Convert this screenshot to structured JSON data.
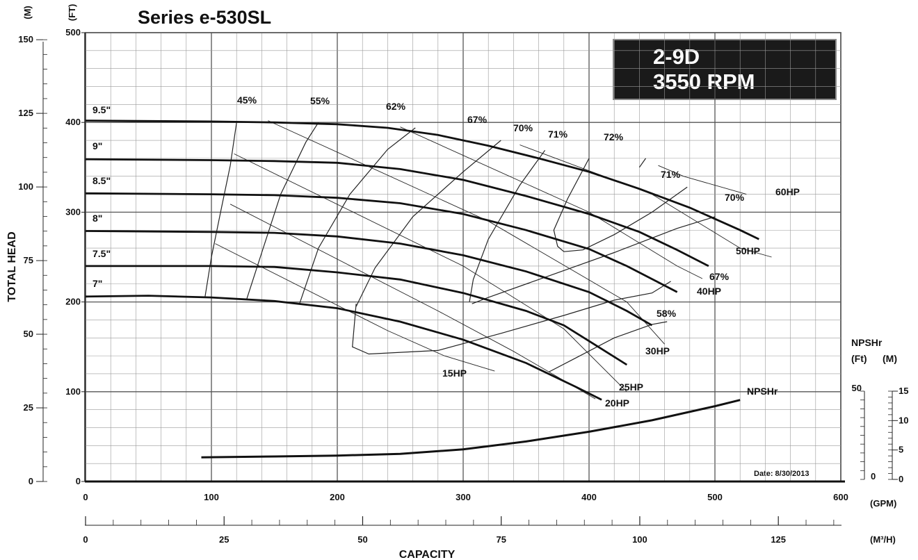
{
  "title": "Series e-530SL",
  "badge": {
    "line1": "2-9D",
    "line2": "3550 RPM"
  },
  "date_label": "Date: 8/30/2013",
  "chart_data": {
    "type": "line",
    "xlabel": "CAPACITY",
    "ylabel": "TOTAL HEAD",
    "x_unit": "(GPM)",
    "x2_unit": "(M³/H)",
    "y_left_unit": "(M)",
    "y_left2_unit": "(FT)",
    "xlim": [
      0,
      600
    ],
    "ylim_ft": [
      0,
      500
    ],
    "x_ticks_gpm": [
      "0",
      "100",
      "200",
      "300",
      "400",
      "500",
      "600"
    ],
    "x_ticks_m3h": [
      "0",
      "25",
      "50",
      "75",
      "100",
      "125"
    ],
    "y_ticks_ft": [
      "0",
      "100",
      "200",
      "300",
      "400",
      "500"
    ],
    "y_ticks_m": [
      "0",
      "25",
      "50",
      "75",
      "100",
      "125",
      "150"
    ],
    "npsh": {
      "header": [
        "NPSHr",
        "(Ft)",
        "(M)"
      ],
      "ft_ticks": [
        "0",
        "50"
      ],
      "m_ticks": [
        "0",
        "5",
        "10",
        "15"
      ],
      "label": "NPSHr",
      "points": [
        [
          92,
          12.5
        ],
        [
          150,
          13
        ],
        [
          200,
          13.5
        ],
        [
          250,
          14.5
        ],
        [
          300,
          17
        ],
        [
          350,
          21.5
        ],
        [
          400,
          27
        ],
        [
          450,
          33.5
        ],
        [
          500,
          41.5
        ],
        [
          520,
          45
        ]
      ]
    },
    "impellers": [
      {
        "name": "9.5\"",
        "points": [
          [
            0,
            402
          ],
          [
            100,
            401
          ],
          [
            150,
            400
          ],
          [
            200,
            398
          ],
          [
            240,
            394
          ],
          [
            280,
            386
          ],
          [
            320,
            374
          ],
          [
            360,
            360
          ],
          [
            400,
            345
          ],
          [
            440,
            326
          ],
          [
            480,
            305
          ],
          [
            520,
            280
          ],
          [
            535,
            270
          ]
        ]
      },
      {
        "name": "9\"",
        "points": [
          [
            0,
            359
          ],
          [
            100,
            358
          ],
          [
            150,
            357
          ],
          [
            200,
            355
          ],
          [
            250,
            348
          ],
          [
            300,
            336
          ],
          [
            350,
            318
          ],
          [
            400,
            298
          ],
          [
            440,
            278
          ],
          [
            470,
            258
          ],
          [
            495,
            240
          ]
        ]
      },
      {
        "name": "8.5\"",
        "points": [
          [
            0,
            321
          ],
          [
            100,
            320
          ],
          [
            150,
            319
          ],
          [
            200,
            316
          ],
          [
            250,
            310
          ],
          [
            300,
            298
          ],
          [
            350,
            280
          ],
          [
            400,
            259
          ],
          [
            430,
            240
          ],
          [
            455,
            222
          ],
          [
            470,
            211
          ]
        ]
      },
      {
        "name": "8\"",
        "points": [
          [
            0,
            279
          ],
          [
            100,
            278
          ],
          [
            150,
            277
          ],
          [
            200,
            273
          ],
          [
            250,
            265
          ],
          [
            300,
            252
          ],
          [
            350,
            234
          ],
          [
            400,
            211
          ],
          [
            430,
            190
          ],
          [
            450,
            174
          ]
        ]
      },
      {
        "name": "7.5\"",
        "points": [
          [
            0,
            240
          ],
          [
            100,
            240
          ],
          [
            150,
            239
          ],
          [
            200,
            233
          ],
          [
            250,
            225
          ],
          [
            300,
            210
          ],
          [
            350,
            190
          ],
          [
            380,
            174
          ],
          [
            405,
            152
          ],
          [
            430,
            130
          ]
        ]
      },
      {
        "name": "7\"",
        "points": [
          [
            0,
            206
          ],
          [
            50,
            207
          ],
          [
            100,
            205
          ],
          [
            150,
            201
          ],
          [
            200,
            193
          ],
          [
            250,
            178
          ],
          [
            300,
            158
          ],
          [
            350,
            132
          ],
          [
            390,
            105
          ],
          [
            410,
            91
          ]
        ]
      }
    ],
    "efficiency_labels": [
      "45%",
      "55%",
      "62%",
      "67%",
      "70%",
      "71%",
      "72%",
      "71%",
      "70%",
      "67%",
      "58%"
    ],
    "efficiency_curves": [
      {
        "name": "45%",
        "points": [
          [
            95,
            206
          ],
          [
            100,
            250
          ],
          [
            108,
            305
          ],
          [
            115,
            352
          ],
          [
            120,
            400
          ]
        ]
      },
      {
        "name": "55%",
        "points": [
          [
            128,
            203
          ],
          [
            140,
            255
          ],
          [
            155,
            320
          ],
          [
            175,
            378
          ],
          [
            185,
            400
          ]
        ]
      },
      {
        "name": "62%",
        "points": [
          [
            170,
            198
          ],
          [
            185,
            260
          ],
          [
            210,
            320
          ],
          [
            240,
            370
          ],
          [
            262,
            394
          ]
        ]
      },
      {
        "name": "67%",
        "points": [
          [
            215,
            195
          ],
          [
            230,
            238
          ],
          [
            260,
            295
          ],
          [
            300,
            345
          ],
          [
            330,
            380
          ]
        ]
      },
      {
        "name": "70%",
        "points": [
          [
            305,
            200
          ],
          [
            308,
            225
          ],
          [
            320,
            270
          ],
          [
            345,
            330
          ],
          [
            365,
            369
          ]
        ]
      },
      {
        "name": "71%",
        "points": [
          [
            380,
            256
          ],
          [
            375,
            262
          ],
          [
            372,
            280
          ],
          [
            383,
            315
          ],
          [
            400,
            360
          ]
        ]
      },
      {
        "name": "72%",
        "points": [
          [
            440,
            350
          ],
          [
            445,
            360
          ]
        ]
      },
      {
        "name": "71%",
        "points": [
          [
            380,
            256
          ],
          [
            395,
            258
          ],
          [
            420,
            275
          ],
          [
            450,
            300
          ],
          [
            478,
            328
          ]
        ]
      },
      {
        "name": "70%",
        "points": [
          [
            307,
            198
          ],
          [
            320,
            205
          ],
          [
            360,
            225
          ],
          [
            420,
            255
          ],
          [
            470,
            282
          ],
          [
            500,
            295
          ]
        ]
      },
      {
        "name": "67%",
        "points": [
          [
            215,
            198
          ],
          [
            212,
            150
          ],
          [
            225,
            142
          ],
          [
            280,
            146
          ],
          [
            330,
            165
          ],
          [
            380,
            185
          ],
          [
            420,
            202
          ],
          [
            450,
            210
          ],
          [
            465,
            223
          ]
        ]
      },
      {
        "name": "58%",
        "points": [
          [
            368,
            122
          ],
          [
            390,
            138
          ],
          [
            420,
            160
          ],
          [
            450,
            175
          ],
          [
            462,
            178
          ]
        ]
      }
    ],
    "hp_labels": [
      "15HP",
      "20HP",
      "25HP",
      "30HP",
      "40HP",
      "50HP",
      "60HP"
    ],
    "hp_lines": [
      {
        "name": "15HP",
        "points": [
          [
            103,
            265
          ],
          [
            240,
            168
          ],
          [
            285,
            140
          ],
          [
            325,
            123
          ]
        ]
      },
      {
        "name": "20HP",
        "points": [
          [
            115,
            309
          ],
          [
            280,
            190
          ],
          [
            340,
            145
          ],
          [
            405,
            92
          ]
        ]
      },
      {
        "name": "25HP",
        "points": [
          [
            118,
            365
          ],
          [
            300,
            240
          ],
          [
            380,
            170
          ],
          [
            430,
            100
          ]
        ]
      },
      {
        "name": "30HP",
        "points": [
          [
            145,
            402
          ],
          [
            320,
            290
          ],
          [
            430,
            200
          ],
          [
            460,
            153
          ]
        ]
      },
      {
        "name": "40HP",
        "points": [
          [
            250,
            395
          ],
          [
            400,
            300
          ],
          [
            470,
            240
          ],
          [
            490,
            226
          ]
        ]
      },
      {
        "name": "50HP",
        "points": [
          [
            345,
            375
          ],
          [
            450,
            320
          ],
          [
            520,
            260
          ],
          [
            545,
            250
          ]
        ]
      },
      {
        "name": "60HP",
        "points": [
          [
            455,
            352
          ],
          [
            475,
            340
          ],
          [
            525,
            320
          ]
        ]
      }
    ],
    "grid": true
  }
}
